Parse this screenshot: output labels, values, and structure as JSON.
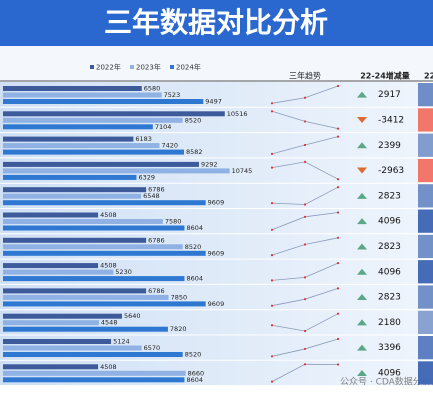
{
  "chart_data": {
    "type": "bar",
    "title": "三年数据对比分析",
    "categories": [
      null,
      null,
      null,
      null,
      null,
      null,
      null,
      null,
      null,
      null,
      null,
      null
    ],
    "series": [
      {
        "name": "2022年",
        "color": "#3d5a9b",
        "values": [
          6580,
          10516,
          6183,
          9292,
          6786,
          4508,
          6786,
          4508,
          6786,
          5640,
          5124,
          4508
        ]
      },
      {
        "name": "2023年",
        "color": "#8fb1e3",
        "values": [
          7523,
          8520,
          7420,
          10745,
          6548,
          7580,
          8520,
          5230,
          7850,
          4548,
          6570,
          8660
        ]
      },
      {
        "name": "2024年",
        "color": "#2e78d2",
        "values": [
          9497,
          7104,
          8582,
          6329,
          9609,
          8604,
          9609,
          8604,
          9609,
          7820,
          8520,
          8604
        ]
      }
    ],
    "xlim": [
      0,
      11000
    ],
    "trend_header": "三年趋势",
    "change_header": "22-24增减量",
    "next_header": "22",
    "changes": [
      2917,
      -3412,
      2399,
      -2963,
      2823,
      4096,
      2823,
      4096,
      2823,
      2180,
      3396,
      4096
    ],
    "watermark": "公众号 · CDA数据分析师"
  }
}
